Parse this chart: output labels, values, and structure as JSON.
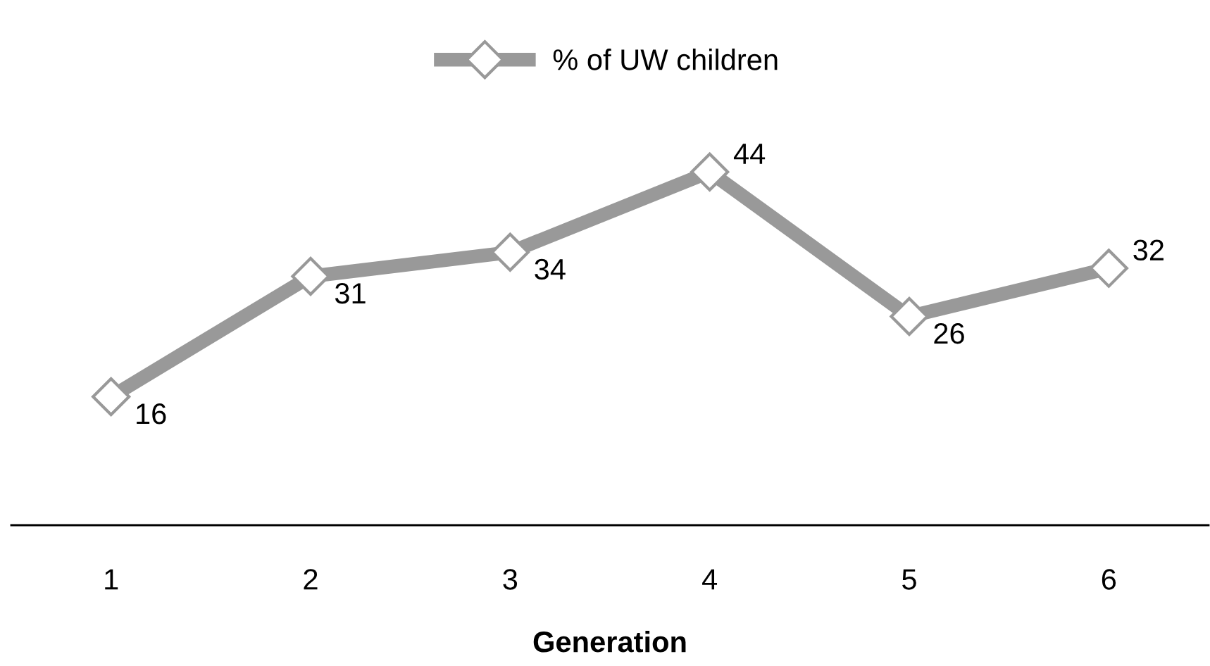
{
  "chart_data": {
    "type": "line",
    "xlabel": "Generation",
    "categories": [
      "1",
      "2",
      "3",
      "4",
      "5",
      "6"
    ],
    "series": [
      {
        "name": "% of UW children",
        "color": "#999999",
        "values": [
          16,
          31,
          34,
          44,
          26,
          32
        ]
      }
    ],
    "tick_labels": "x",
    "data_labels": true,
    "legend": "top",
    "marker": "diamond",
    "line_style": "solid",
    "grid": false
  }
}
